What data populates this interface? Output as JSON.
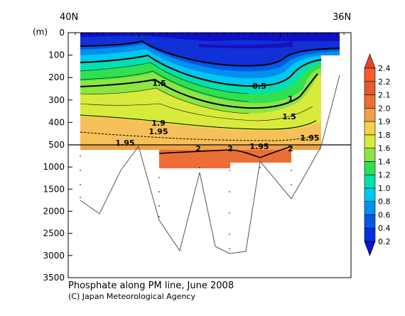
{
  "chart_data": {
    "type": "contour",
    "title": "Phosphate along PM line, June 2008",
    "credit": "(C) Japan Meteorological Agency",
    "top_labels": [
      "40N",
      "36N"
    ],
    "y_unit": "(m)",
    "y_axis_upper": {
      "range": [
        0,
        500
      ],
      "ticks": [
        0,
        100,
        200,
        300,
        400,
        500
      ]
    },
    "y_axis_lower": {
      "range": [
        500,
        3500
      ],
      "ticks": [
        1000,
        1500,
        2000,
        2500,
        3000,
        3500
      ]
    },
    "grid": false,
    "colorbar": {
      "placement": "right",
      "extend": "both",
      "levels": [
        0.2,
        0.4,
        0.6,
        0.8,
        1.0,
        1.2,
        1.4,
        1.6,
        1.8,
        1.9,
        2.0,
        2.1,
        2.2,
        2.4
      ],
      "tick_labels": [
        "0.2",
        "0.4",
        "0.6",
        "0.8",
        "1.0",
        "1.2",
        "1.4",
        "1.6",
        "1.8",
        "1.9",
        "2.0",
        "2.1",
        "2.2",
        "2.4"
      ],
      "colors": [
        "#1010c8",
        "#0030e0",
        "#005ae6",
        "#0090f0",
        "#00c8f0",
        "#00e0b0",
        "#30e050",
        "#8ce641",
        "#d8eb3c",
        "#f5d24b",
        "#f0a046",
        "#eb6e37",
        "#e65a32",
        "#ff5a2a",
        "#e84820"
      ]
    },
    "contour_labels": [
      "0.5",
      "1",
      "1.5",
      "1.5",
      "1.9",
      "1.95",
      "1.95",
      "2",
      "1.95",
      "2",
      "2",
      "1.95"
    ]
  }
}
